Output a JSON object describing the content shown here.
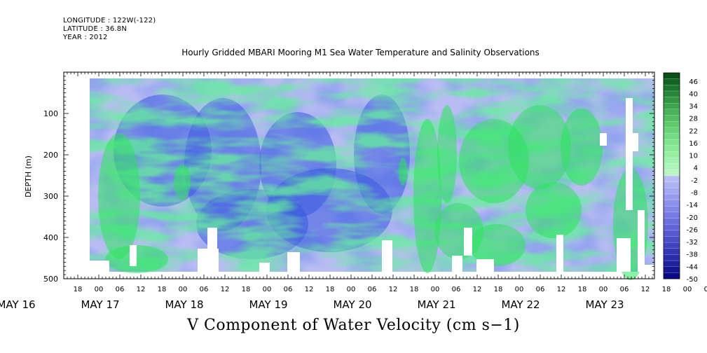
{
  "meta": {
    "longitude": "LONGITUDE : 122W(-122)",
    "latitude": "LATITUDE : 36.8N",
    "year": "YEAR : 2012"
  },
  "chart_data": {
    "type": "heatmap",
    "title": "Hourly Gridded MBARI Mooring M1 Sea Water Temperature and Salinity Observations",
    "variable_label": "V Component of Water Velocity (cm s−1)",
    "ylabel": "DEPTH (m)",
    "ylim": [
      500,
      0
    ],
    "y_ticks": [
      100,
      200,
      300,
      400,
      500
    ],
    "x_hour_ticks": [
      "18",
      "00",
      "06",
      "12",
      "18",
      "00",
      "06",
      "12",
      "18",
      "00",
      "06",
      "12",
      "18",
      "00",
      "06",
      "12",
      "18",
      "00",
      "06",
      "12",
      "18",
      "00",
      "06",
      "12",
      "18",
      "00",
      "06",
      "12",
      "18",
      "00",
      "06",
      "12"
    ],
    "x_day_labels": [
      "MAY 16",
      "MAY 17",
      "MAY 18",
      "MAY 19",
      "MAY 20",
      "MAY 21",
      "MAY 22",
      "MAY 23"
    ],
    "colorbar_labels": [
      "46",
      "40",
      "34",
      "28",
      "22",
      "16",
      "10",
      "4",
      "-2",
      "-8",
      "-14",
      "-20",
      "-26",
      "-32",
      "-38",
      "-44",
      "-50"
    ],
    "colorbar_range": [
      -50,
      50
    ],
    "colors": {
      "negative": "#3050d0",
      "near_zero": "#b8bcf2",
      "positive": "#20dd55",
      "missing": "#ffffff"
    }
  }
}
